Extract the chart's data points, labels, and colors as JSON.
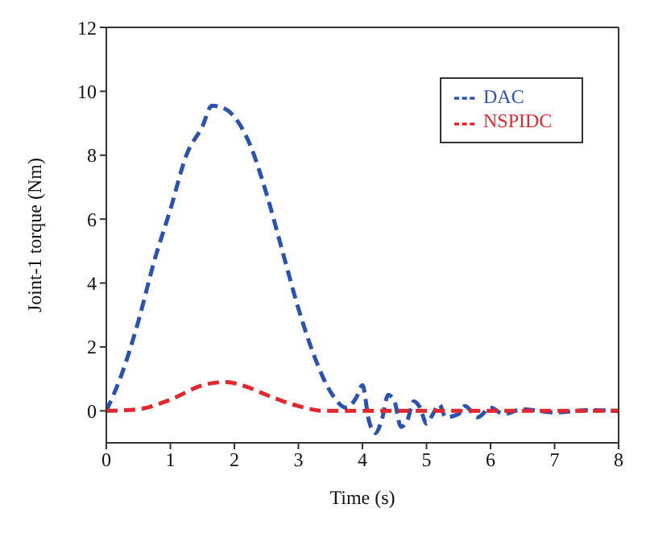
{
  "chart_data": {
    "type": "line",
    "xlabel": "Time (s)",
    "ylabel": "Joint-1 torque (Nm)",
    "xlim": [
      0,
      8
    ],
    "ylim": [
      -1,
      12
    ],
    "xticks": [
      0,
      1,
      2,
      3,
      4,
      5,
      6,
      7,
      8
    ],
    "yticks": [
      0,
      2,
      4,
      6,
      8,
      10,
      12
    ],
    "grid": false,
    "legend": "top right",
    "marker": "none",
    "line_style": "dashed",
    "series": [
      {
        "name": "DAC",
        "color": "#2a52b0",
        "x": [
          0,
          0.25,
          0.5,
          0.75,
          1,
          1.25,
          1.5,
          1.65,
          1.8,
          2,
          2.25,
          2.5,
          2.75,
          3,
          3.25,
          3.5,
          3.75,
          3.9,
          4,
          4.1,
          4.2,
          4.3,
          4.4,
          4.5,
          4.6,
          4.7,
          4.8,
          4.9,
          5,
          5.1,
          5.2,
          5.3,
          5.5,
          5.6,
          5.8,
          6,
          6.2,
          6.5,
          7,
          7.5,
          8
        ],
        "values": [
          0,
          1.2,
          2.8,
          4.7,
          6.3,
          8,
          8.9,
          9.55,
          9.5,
          9.2,
          8.3,
          6.8,
          5,
          3.2,
          1.7,
          0.6,
          0.1,
          0.4,
          0.8,
          -0.3,
          -0.7,
          -0.3,
          0.5,
          0.3,
          -0.5,
          -0.3,
          0.3,
          0.1,
          -0.4,
          -0.1,
          0.2,
          -0.2,
          -0.1,
          0.15,
          -0.2,
          0.1,
          -0.1,
          0.05,
          -0.05,
          0.02,
          0
        ]
      },
      {
        "name": "NSPIDC",
        "color": "#e0282e",
        "x": [
          0,
          0.5,
          1,
          1.5,
          1.85,
          2.2,
          2.5,
          3,
          3.4,
          4,
          8
        ],
        "values": [
          0,
          0.05,
          0.35,
          0.8,
          0.9,
          0.75,
          0.5,
          0.15,
          0,
          0,
          0
        ]
      }
    ]
  }
}
